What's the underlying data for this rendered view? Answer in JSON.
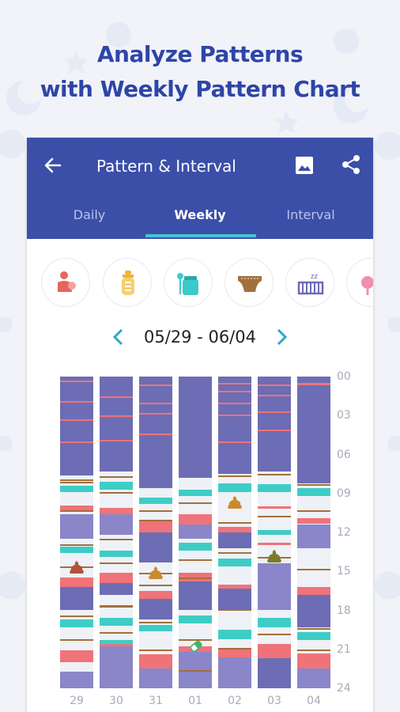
{
  "headline": {
    "line1": "Analyze Patterns",
    "line2": "with Weekly Pattern Chart"
  },
  "app": {
    "title": "Pattern & Interval"
  },
  "tabs": [
    {
      "label": "Daily",
      "active": false
    },
    {
      "label": "Weekly",
      "active": true
    },
    {
      "label": "Interval",
      "active": false
    }
  ],
  "categories": [
    {
      "name": "breastfeeding-icon",
      "color": "#e8655f"
    },
    {
      "name": "bottle-icon",
      "color": "#f2b533"
    },
    {
      "name": "baby-food-icon",
      "color": "#3cc9c9"
    },
    {
      "name": "diaper-icon",
      "color": "#a0703e"
    },
    {
      "name": "sleep-icon",
      "color": "#6c69b5"
    },
    {
      "name": "more-icon",
      "color": "#f08fb0"
    }
  ],
  "date_range": "05/29 - 06/04",
  "colors": {
    "sleep": "#6c6db4",
    "sleep_light": "#8a86c9",
    "breastfeed": "#ef7379",
    "baby_food": "#3ecdc6",
    "diaper": "#a46f3c",
    "background": "#eef1f6",
    "accent": "#3b4fa8"
  },
  "chart_data": {
    "type": "timeline",
    "xlabel": "",
    "ylabel": "",
    "x": [
      "29",
      "30",
      "31",
      "01",
      "02",
      "03",
      "04"
    ],
    "y_ticks": [
      "00",
      "03",
      "06",
      "09",
      "12",
      "15",
      "18",
      "21",
      "24"
    ],
    "ylim": [
      0,
      24
    ],
    "columns": [
      {
        "day": "29",
        "sleep": [
          [
            0,
            7.6
          ],
          [
            10.6,
            12.5
          ],
          [
            16.2,
            18.0
          ],
          [
            22.7,
            24
          ]
        ],
        "feed": [
          [
            0.3,
            0.4
          ],
          [
            1.9,
            2.0
          ],
          [
            3.3,
            3.4
          ],
          [
            5.0,
            5.1
          ],
          [
            9.9,
            10.4
          ],
          [
            15.5,
            16.2
          ],
          [
            21.1,
            22.0
          ]
        ],
        "food": [
          [
            8.4,
            8.9
          ],
          [
            13.1,
            13.6
          ],
          [
            18.7,
            19.3
          ]
        ],
        "diaper": [
          [
            7.9,
            8.0
          ],
          [
            8.1,
            8.2
          ],
          [
            10.3,
            10.4
          ],
          [
            12.9,
            13.0
          ],
          [
            14.6,
            14.7
          ],
          [
            18.4,
            18.5
          ],
          [
            20.2,
            20.3
          ]
        ],
        "poop": [
          14.7
        ]
      },
      {
        "day": "30",
        "sleep": [
          [
            0,
            7.3
          ],
          [
            10.6,
            12.2
          ],
          [
            15.9,
            16.8
          ],
          [
            20.8,
            24
          ]
        ],
        "feed": [
          [
            1.5,
            1.6
          ],
          [
            3.0,
            3.1
          ],
          [
            4.9,
            5.0
          ],
          [
            10.1,
            10.6
          ],
          [
            15.1,
            15.9
          ],
          [
            20.5,
            20.8
          ]
        ],
        "food": [
          [
            8.1,
            8.7
          ],
          [
            13.4,
            13.9
          ],
          [
            18.6,
            19.2
          ],
          [
            20.3,
            20.6
          ]
        ],
        "diaper": [
          [
            7.7,
            7.8
          ],
          [
            8.9,
            9.0
          ],
          [
            12.5,
            12.6
          ],
          [
            14.3,
            14.4
          ],
          [
            17.6,
            17.8
          ],
          [
            19.7,
            19.8
          ]
        ],
        "poop": []
      },
      {
        "day": "31",
        "sleep": [
          [
            0,
            8.6
          ],
          [
            12.0,
            14.3
          ],
          [
            17.1,
            18.7
          ],
          [
            22.5,
            24
          ]
        ],
        "feed": [
          [
            0.6,
            0.7
          ],
          [
            2.0,
            2.1
          ],
          [
            2.8,
            2.9
          ],
          [
            4.4,
            4.5
          ],
          [
            11.1,
            12.0
          ],
          [
            16.5,
            17.1
          ],
          [
            21.4,
            22.5
          ]
        ],
        "food": [
          [
            9.3,
            9.8
          ],
          [
            19.1,
            19.6
          ]
        ],
        "diaper": [
          [
            10.3,
            10.4
          ],
          [
            11.0,
            11.1
          ],
          [
            15.1,
            15.2
          ],
          [
            16.0,
            16.1
          ],
          [
            18.9,
            19.0
          ],
          [
            21.0,
            21.1
          ]
        ],
        "poop": [
          15.1
        ]
      },
      {
        "day": "01",
        "sleep": [
          [
            0,
            7.8
          ],
          [
            11.4,
            12.5
          ],
          [
            15.8,
            18.0
          ],
          [
            21.2,
            24
          ]
        ],
        "feed": [
          [
            10.6,
            11.4
          ],
          [
            15.1,
            15.8
          ],
          [
            20.8,
            21.2
          ]
        ],
        "food": [
          [
            8.7,
            9.2
          ],
          [
            12.8,
            13.4
          ],
          [
            18.4,
            19.0
          ]
        ],
        "diaper": [
          [
            9.7,
            9.8
          ],
          [
            14.1,
            14.2
          ],
          [
            15.5,
            15.6
          ],
          [
            20.2,
            20.3
          ],
          [
            22.6,
            22.7
          ]
        ],
        "poop": []
      },
      {
        "day": "02",
        "sleep": [
          [
            0,
            7.5
          ],
          [
            12.0,
            13.2
          ],
          [
            16.3,
            17.9
          ],
          [
            21.6,
            24
          ]
        ],
        "feed": [
          [
            0.5,
            0.6
          ],
          [
            1.1,
            1.2
          ],
          [
            2.0,
            2.1
          ],
          [
            2.9,
            3.0
          ],
          [
            5.0,
            5.1
          ],
          [
            11.6,
            12.0
          ],
          [
            16.0,
            16.3
          ],
          [
            21.0,
            21.6
          ]
        ],
        "food": [
          [
            8.2,
            8.9
          ],
          [
            14.0,
            14.6
          ],
          [
            19.5,
            20.2
          ]
        ],
        "diaper": [
          [
            7.6,
            7.7
          ],
          [
            11.2,
            11.3
          ],
          [
            13.5,
            13.6
          ],
          [
            17.9,
            18.0
          ],
          [
            20.9,
            21.0
          ]
        ],
        "poop": [
          9.7
        ]
      },
      {
        "day": "03",
        "sleep": [
          [
            0,
            7.3
          ],
          [
            14.4,
            18.0
          ],
          [
            21.7,
            24
          ]
        ],
        "feed": [
          [
            0.6,
            0.7
          ],
          [
            1.4,
            1.5
          ],
          [
            2.7,
            2.8
          ],
          [
            4.1,
            4.2
          ],
          [
            10.0,
            10.2
          ],
          [
            12.8,
            13.0
          ],
          [
            20.6,
            21.7
          ]
        ],
        "food": [
          [
            8.3,
            8.9
          ],
          [
            11.8,
            12.2
          ],
          [
            18.6,
            19.3
          ]
        ],
        "diaper": [
          [
            7.5,
            7.6
          ],
          [
            10.7,
            10.8
          ],
          [
            13.9,
            14.0
          ],
          [
            19.8,
            19.9
          ]
        ],
        "poop": [
          13.8
        ]
      },
      {
        "day": "04",
        "sleep": [
          [
            0,
            8.2
          ],
          [
            11.4,
            13.2
          ],
          [
            16.8,
            19.3
          ],
          [
            22.5,
            24
          ]
        ],
        "feed": [
          [
            0.5,
            0.7
          ],
          [
            10.9,
            11.3
          ],
          [
            16.2,
            16.8
          ],
          [
            21.3,
            22.5
          ]
        ],
        "food": [
          [
            8.6,
            9.2
          ],
          [
            19.7,
            20.3
          ]
        ],
        "diaper": [
          [
            8.3,
            8.4
          ],
          [
            10.3,
            10.4
          ],
          [
            14.8,
            14.9
          ],
          [
            19.4,
            19.5
          ],
          [
            21.0,
            21.1
          ]
        ],
        "poop": []
      }
    ],
    "bottle_markers": [
      {
        "day": "01",
        "hour": 20.8
      }
    ]
  }
}
